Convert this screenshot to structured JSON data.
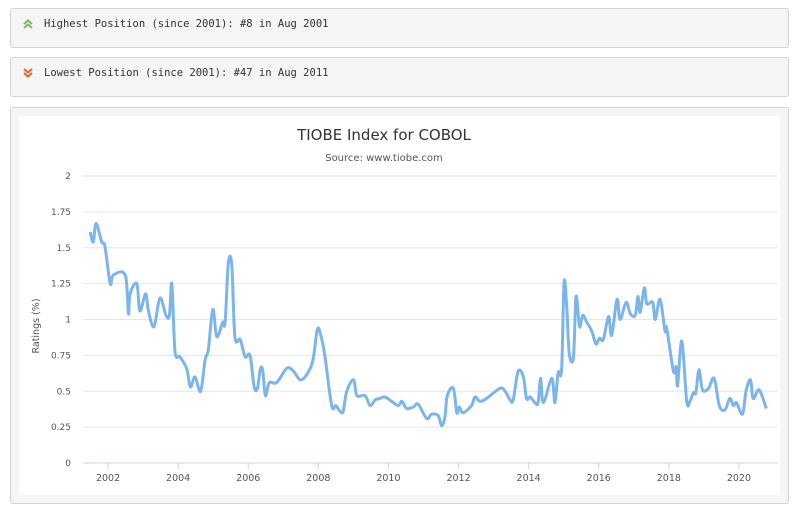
{
  "highest": {
    "text": "Highest Position (since 2001): #8 in Aug 2001",
    "icon": "double-chevron-up-icon",
    "color": "#7cb860"
  },
  "lowest": {
    "text": "Lowest Position (since 2001): #47 in Aug 2011",
    "icon": "double-chevron-down-icon",
    "color": "#e0652c"
  },
  "chart_data": {
    "type": "line",
    "title": "TIOBE Index for COBOL",
    "subtitle": "Source: www.tiobe.com",
    "xlabel": "",
    "ylabel": "Ratings (%)",
    "ylim": [
      0,
      2
    ],
    "xlim": [
      2001.0,
      2021.0
    ],
    "yticks": [
      "0",
      "0.25",
      "0.5",
      "0.75",
      "1",
      "1.25",
      "1.5",
      "1.75",
      "2"
    ],
    "xticks": [
      "2002",
      "2004",
      "2006",
      "2008",
      "2010",
      "2012",
      "2014",
      "2016",
      "2018",
      "2020"
    ],
    "grid": true,
    "series": [
      {
        "name": "COBOL",
        "color": "#7cb5ec",
        "points": [
          [
            2001.49,
            1.61
          ],
          [
            2001.58,
            1.54
          ],
          [
            2001.66,
            1.67
          ],
          [
            2001.82,
            1.54
          ],
          [
            2001.91,
            1.51
          ],
          [
            2002.06,
            1.25
          ],
          [
            2002.15,
            1.31
          ],
          [
            2002.49,
            1.31
          ],
          [
            2002.58,
            1.04
          ],
          [
            2002.63,
            1.18
          ],
          [
            2002.82,
            1.25
          ],
          [
            2002.91,
            1.06
          ],
          [
            2003.07,
            1.18
          ],
          [
            2003.15,
            1.06
          ],
          [
            2003.31,
            0.95
          ],
          [
            2003.48,
            1.15
          ],
          [
            2003.65,
            1.03
          ],
          [
            2003.75,
            1.03
          ],
          [
            2003.82,
            1.25
          ],
          [
            2003.91,
            0.78
          ],
          [
            2004.05,
            0.74
          ],
          [
            2004.24,
            0.66
          ],
          [
            2004.35,
            0.53
          ],
          [
            2004.48,
            0.6
          ],
          [
            2004.64,
            0.5
          ],
          [
            2004.77,
            0.72
          ],
          [
            2004.86,
            0.79
          ],
          [
            2004.99,
            1.07
          ],
          [
            2005.1,
            0.88
          ],
          [
            2005.27,
            0.98
          ],
          [
            2005.34,
            0.98
          ],
          [
            2005.43,
            1.39
          ],
          [
            2005.53,
            1.38
          ],
          [
            2005.62,
            0.88
          ],
          [
            2005.77,
            0.86
          ],
          [
            2005.91,
            0.74
          ],
          [
            2006.05,
            0.75
          ],
          [
            2006.17,
            0.53
          ],
          [
            2006.26,
            0.52
          ],
          [
            2006.34,
            0.65
          ],
          [
            2006.41,
            0.65
          ],
          [
            2006.49,
            0.47
          ],
          [
            2006.6,
            0.56
          ],
          [
            2006.81,
            0.56
          ],
          [
            2007.1,
            0.66
          ],
          [
            2007.29,
            0.64
          ],
          [
            2007.48,
            0.58
          ],
          [
            2007.65,
            0.61
          ],
          [
            2007.84,
            0.71
          ],
          [
            2007.97,
            0.93
          ],
          [
            2008.07,
            0.89
          ],
          [
            2008.19,
            0.74
          ],
          [
            2008.38,
            0.4
          ],
          [
            2008.5,
            0.4
          ],
          [
            2008.62,
            0.36
          ],
          [
            2008.71,
            0.36
          ],
          [
            2008.81,
            0.5
          ],
          [
            2009.0,
            0.58
          ],
          [
            2009.1,
            0.47
          ],
          [
            2009.33,
            0.47
          ],
          [
            2009.48,
            0.4
          ],
          [
            2009.62,
            0.44
          ],
          [
            2009.76,
            0.45
          ],
          [
            2009.9,
            0.46
          ],
          [
            2010.09,
            0.43
          ],
          [
            2010.28,
            0.4
          ],
          [
            2010.38,
            0.43
          ],
          [
            2010.52,
            0.38
          ],
          [
            2010.71,
            0.39
          ],
          [
            2010.85,
            0.41
          ],
          [
            2011.09,
            0.31
          ],
          [
            2011.23,
            0.34
          ],
          [
            2011.42,
            0.33
          ],
          [
            2011.52,
            0.26
          ],
          [
            2011.61,
            0.32
          ],
          [
            2011.68,
            0.47
          ],
          [
            2011.85,
            0.52
          ],
          [
            2011.95,
            0.35
          ],
          [
            2012.02,
            0.39
          ],
          [
            2012.13,
            0.35
          ],
          [
            2012.37,
            0.4
          ],
          [
            2012.47,
            0.46
          ],
          [
            2012.61,
            0.43
          ],
          [
            2012.8,
            0.45
          ],
          [
            2013.18,
            0.52
          ],
          [
            2013.33,
            0.5
          ],
          [
            2013.47,
            0.44
          ],
          [
            2013.56,
            0.44
          ],
          [
            2013.7,
            0.64
          ],
          [
            2013.85,
            0.6
          ],
          [
            2013.94,
            0.45
          ],
          [
            2014.04,
            0.46
          ],
          [
            2014.18,
            0.42
          ],
          [
            2014.27,
            0.42
          ],
          [
            2014.34,
            0.59
          ],
          [
            2014.42,
            0.42
          ],
          [
            2014.66,
            0.59
          ],
          [
            2014.75,
            0.42
          ],
          [
            2014.84,
            0.63
          ],
          [
            2014.94,
            0.65
          ],
          [
            2015.01,
            1.26
          ],
          [
            2015.09,
            1.07
          ],
          [
            2015.16,
            0.76
          ],
          [
            2015.28,
            0.74
          ],
          [
            2015.35,
            1.16
          ],
          [
            2015.45,
            0.95
          ],
          [
            2015.54,
            1.03
          ],
          [
            2015.66,
            0.98
          ],
          [
            2015.8,
            0.92
          ],
          [
            2015.92,
            0.83
          ],
          [
            2016.02,
            0.87
          ],
          [
            2016.13,
            0.86
          ],
          [
            2016.28,
            1.02
          ],
          [
            2016.37,
            0.89
          ],
          [
            2016.52,
            1.14
          ],
          [
            2016.61,
            1.0
          ],
          [
            2016.78,
            1.12
          ],
          [
            2016.9,
            1.04
          ],
          [
            2017.04,
            1.03
          ],
          [
            2017.12,
            1.16
          ],
          [
            2017.18,
            1.05
          ],
          [
            2017.3,
            1.22
          ],
          [
            2017.37,
            1.11
          ],
          [
            2017.54,
            1.12
          ],
          [
            2017.61,
            1.0
          ],
          [
            2017.75,
            1.14
          ],
          [
            2017.89,
            0.92
          ],
          [
            2017.94,
            0.94
          ],
          [
            2018.13,
            0.64
          ],
          [
            2018.21,
            0.67
          ],
          [
            2018.25,
            0.54
          ],
          [
            2018.37,
            0.85
          ],
          [
            2018.51,
            0.43
          ],
          [
            2018.6,
            0.43
          ],
          [
            2018.7,
            0.49
          ],
          [
            2018.77,
            0.49
          ],
          [
            2018.86,
            0.65
          ],
          [
            2018.96,
            0.51
          ],
          [
            2019.13,
            0.52
          ],
          [
            2019.29,
            0.59
          ],
          [
            2019.44,
            0.4
          ],
          [
            2019.6,
            0.37
          ],
          [
            2019.74,
            0.45
          ],
          [
            2019.84,
            0.4
          ],
          [
            2019.93,
            0.42
          ],
          [
            2020.1,
            0.34
          ],
          [
            2020.2,
            0.5
          ],
          [
            2020.33,
            0.58
          ],
          [
            2020.4,
            0.45
          ],
          [
            2020.55,
            0.51
          ],
          [
            2020.64,
            0.48
          ],
          [
            2020.78,
            0.38
          ]
        ]
      }
    ]
  }
}
